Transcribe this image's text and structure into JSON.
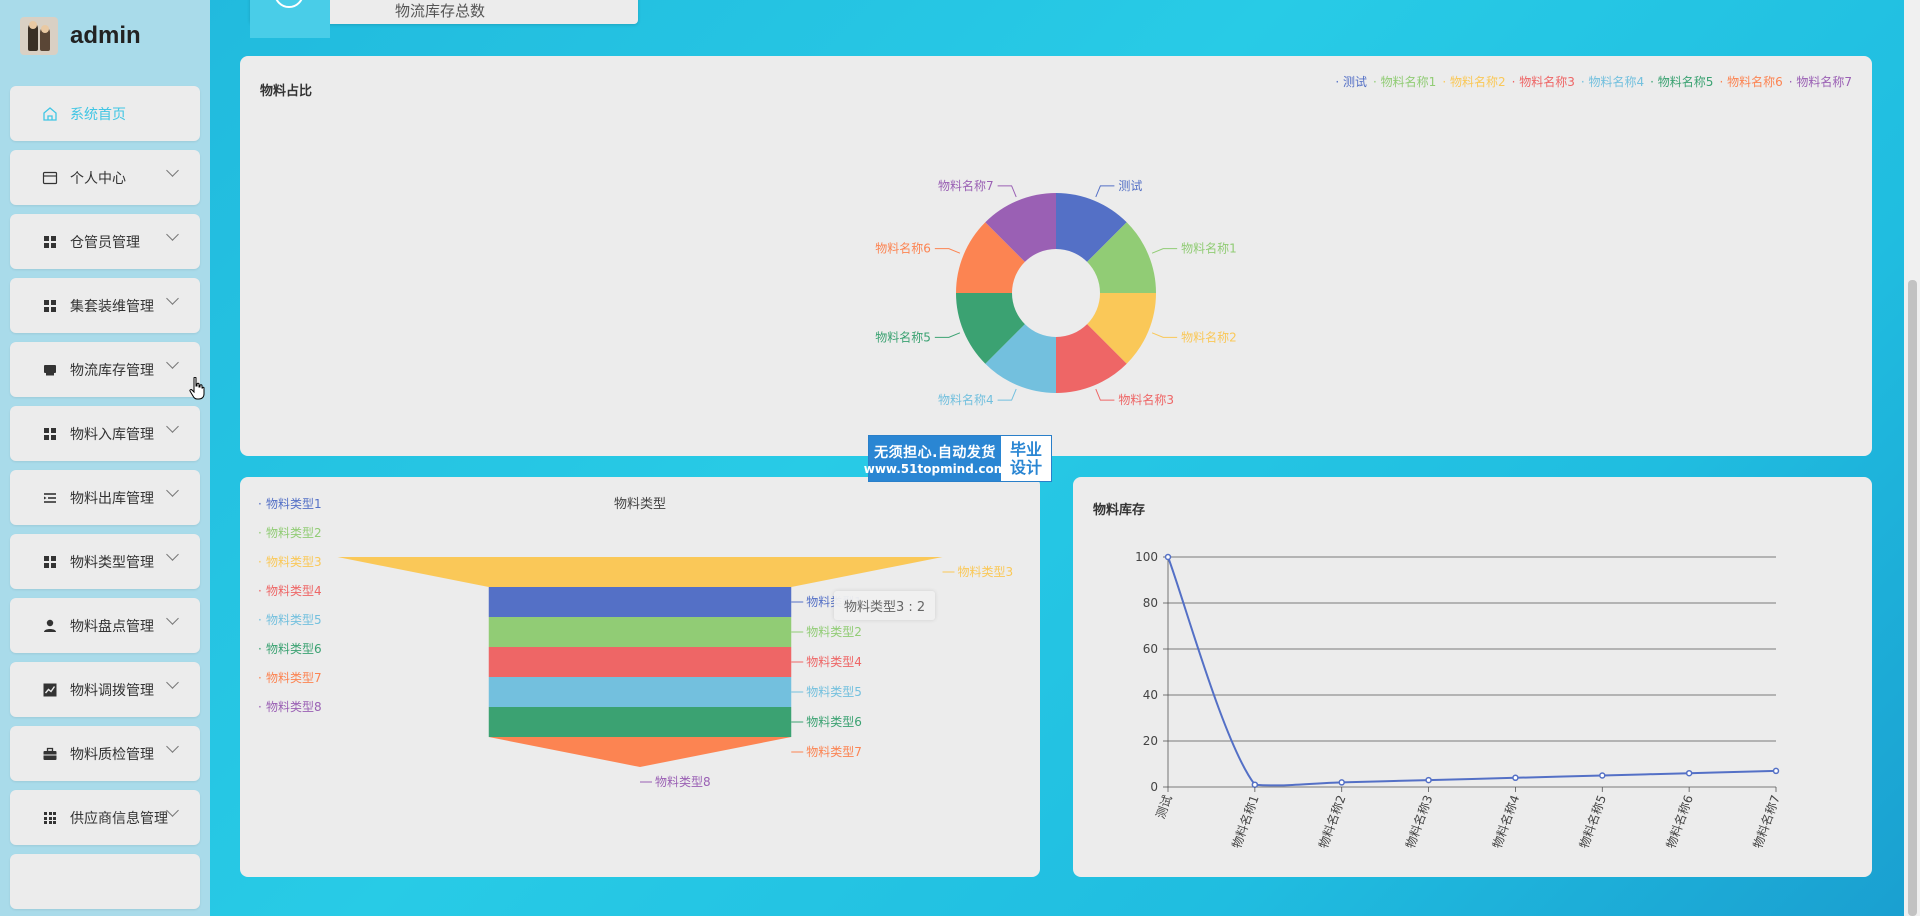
{
  "user": {
    "name": "admin"
  },
  "sidebar": {
    "items": [
      {
        "label": "系统首页",
        "icon": "home-icon",
        "active": true
      },
      {
        "label": "个人中心",
        "icon": "card-icon"
      },
      {
        "label": "仓管员管理",
        "icon": "grid-icon"
      },
      {
        "label": "集套装维管理",
        "icon": "grid-icon"
      },
      {
        "label": "物流库存管理",
        "icon": "inbox-icon"
      },
      {
        "label": "物料入库管理",
        "icon": "grid-icon"
      },
      {
        "label": "物料出库管理",
        "icon": "list-indent-icon"
      },
      {
        "label": "物料类型管理",
        "icon": "grid-icon"
      },
      {
        "label": "物料盘点管理",
        "icon": "user-icon"
      },
      {
        "label": "物料调拨管理",
        "icon": "chart-icon"
      },
      {
        "label": "物料质检管理",
        "icon": "briefcase-icon"
      },
      {
        "label": "供应商信息管理",
        "icon": "apps-icon"
      }
    ]
  },
  "stat_card": {
    "label": "物流库存总数"
  },
  "watermark": {
    "line1": "无须担心.自动发货",
    "line2": "www.51topmind.com",
    "right_top": "毕业",
    "right_bottom": "设计"
  },
  "tooltip": {
    "text": "物料类型3 : 2"
  },
  "colors": {
    "palette": [
      "#5470c6",
      "#91cc75",
      "#fac858",
      "#ee6666",
      "#73c0de",
      "#3ba272",
      "#fc8452",
      "#9a60b4"
    ],
    "accent": "#41c6e4"
  },
  "chart_data": [
    {
      "type": "pie",
      "title": "物料占比",
      "legend_position": "top-right",
      "labels": [
        "测试",
        "物料名称1",
        "物料名称2",
        "物料名称3",
        "物料名称4",
        "物料名称5",
        "物料名称6",
        "物料名称7"
      ],
      "values": [
        1,
        1,
        1,
        1,
        1,
        1,
        1,
        1
      ],
      "donut": true
    },
    {
      "type": "funnel",
      "title": "物料类型",
      "legend_position": "left",
      "labels": [
        "物料类型1",
        "物料类型2",
        "物料类型3",
        "物料类型4",
        "物料类型5",
        "物料类型6",
        "物料类型7",
        "物料类型8"
      ],
      "values": [
        1,
        1,
        2,
        1,
        1,
        1,
        1,
        0
      ]
    },
    {
      "type": "line",
      "title": "物料库存",
      "categories": [
        "测试",
        "物料名称1",
        "物料名称2",
        "物料名称3",
        "物料名称4",
        "物料名称5",
        "物料名称6",
        "物料名称7"
      ],
      "values": [
        100,
        1,
        2,
        3,
        4,
        5,
        6,
        7
      ],
      "ylim": [
        0,
        100
      ],
      "yticks": [
        0,
        20,
        40,
        60,
        80,
        100
      ],
      "grid": true,
      "smooth": true
    }
  ]
}
